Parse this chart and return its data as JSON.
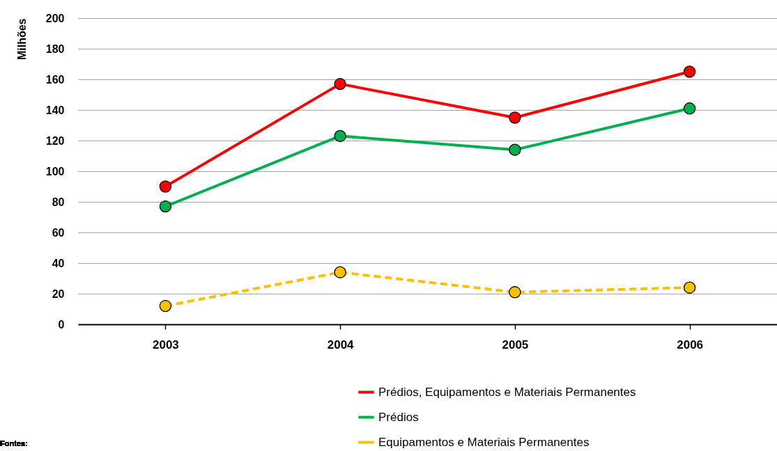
{
  "chart_data": {
    "type": "line",
    "ylabel": "Milhões",
    "categories": [
      "2003",
      "2004",
      "2005",
      "2006"
    ],
    "series": [
      {
        "name": "Prédios, Equipamentos e Materiais Permanentes",
        "color": "#ff0000",
        "values": [
          90,
          157,
          135,
          165
        ]
      },
      {
        "name": "Prédios",
        "color": "#00b050",
        "values": [
          77,
          123,
          114,
          141
        ]
      },
      {
        "name": "Equipamentos e Materiais Permanentes",
        "color": "#ffc000",
        "values": [
          12,
          34,
          21,
          24
        ],
        "line_style": "dashed"
      }
    ],
    "ylim": [
      0,
      200
    ],
    "yticks": [
      0,
      20,
      40,
      60,
      80,
      100,
      120,
      140,
      160,
      180,
      200
    ],
    "grid": "y",
    "legend": "bottom right",
    "marker": "circle",
    "line_style": "solid",
    "annotations": [
      "Fontes:"
    ]
  }
}
